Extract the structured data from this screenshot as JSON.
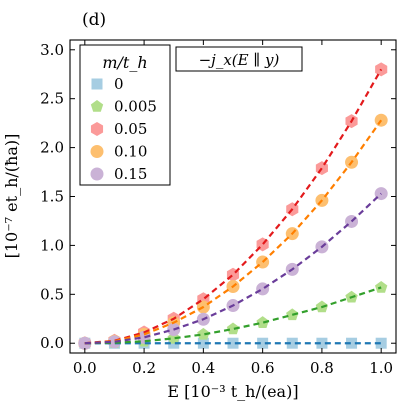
{
  "panel_label": "(d)",
  "colors": {
    "axis": "#000000",
    "series": {
      "0": {
        "marker_fill": "#a6cde2",
        "line": "#1f78b4"
      },
      "0.005": {
        "marker_fill": "#b1de89",
        "line": "#33a02c"
      },
      "0.05": {
        "marker_fill": "#fb9a99",
        "line": "#e31a1c"
      },
      "0.10": {
        "marker_fill": "#fdbf6f",
        "line": "#ff7f00"
      },
      "0.15": {
        "marker_fill": "#cab2d6",
        "line": "#6a3d9a"
      }
    }
  },
  "chart_data": {
    "type": "scatter",
    "annotation": "−j_x(E ∥ y)",
    "xlabel": "E  [10⁻³ t_h/(ea)]",
    "ylabel": "[10⁻⁷ et_h/(ħa)]",
    "xlim": [
      -0.05,
      1.05
    ],
    "ylim": [
      -0.1,
      3.1
    ],
    "xticks": [
      "0.0",
      "0.2",
      "0.4",
      "0.6",
      "0.8",
      "1.0"
    ],
    "yticks": [
      "0.0",
      "0.5",
      "1.0",
      "1.5",
      "2.0",
      "2.5",
      "3.0"
    ],
    "legend_title": "m/t_h",
    "legend_position": "upper-left",
    "grid": false,
    "x": [
      0.0,
      0.1,
      0.2,
      0.3,
      0.4,
      0.5,
      0.6,
      0.7,
      0.8,
      0.9,
      1.0
    ],
    "series": [
      {
        "name": "0",
        "marker": "square",
        "values": [
          0.0,
          0.0,
          0.0,
          0.0,
          0.0,
          0.0,
          0.0,
          0.0,
          0.0,
          0.0,
          0.0
        ]
      },
      {
        "name": "0.005",
        "marker": "pentagon",
        "values": [
          0.0,
          0.005,
          0.02,
          0.05,
          0.09,
          0.145,
          0.21,
          0.29,
          0.37,
          0.47,
          0.57
        ]
      },
      {
        "name": "0.05",
        "marker": "hexagon",
        "values": [
          0.0,
          0.025,
          0.11,
          0.25,
          0.45,
          0.7,
          1.01,
          1.37,
          1.79,
          2.27,
          2.8
        ]
      },
      {
        "name": "0.10",
        "marker": "circle",
        "values": [
          0.0,
          0.02,
          0.09,
          0.21,
          0.37,
          0.58,
          0.83,
          1.12,
          1.46,
          1.85,
          2.28
        ]
      },
      {
        "name": "0.15",
        "marker": "circle",
        "values": [
          0.0,
          0.015,
          0.06,
          0.14,
          0.245,
          0.385,
          0.555,
          0.755,
          0.985,
          1.245,
          1.53
        ]
      }
    ]
  }
}
